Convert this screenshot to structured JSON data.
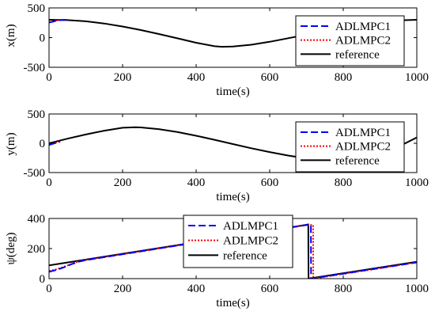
{
  "chart_data": [
    {
      "type": "line",
      "xlabel": "time(s)",
      "ylabel": "x(m)",
      "xlim": [
        0,
        1000
      ],
      "ylim": [
        -500,
        500
      ],
      "xticks": [
        "0",
        "200",
        "400",
        "600",
        "800",
        "1000"
      ],
      "yticks": [
        "500",
        "0",
        "-500"
      ],
      "legend_placement": "top-right",
      "series": [
        {
          "name": "ADLMPC1",
          "style": "dashed",
          "color": "#0000ff",
          "x": [
            0,
            10,
            20,
            30,
            40,
            50
          ],
          "y": [
            255,
            268,
            285,
            295,
            298,
            300
          ]
        },
        {
          "name": "ADLMPC2",
          "style": "dotted",
          "color": "#ff0000",
          "x": [
            0,
            10,
            20,
            30,
            40,
            50
          ],
          "y": [
            260,
            272,
            287,
            296,
            299,
            300
          ]
        },
        {
          "name": "reference",
          "style": "solid",
          "color": "#000000",
          "x": [
            0,
            50,
            100,
            150,
            200,
            250,
            300,
            350,
            400,
            450,
            470,
            500,
            550,
            600,
            650,
            700,
            750,
            800,
            850,
            900,
            950,
            1000
          ],
          "y": [
            300,
            295,
            275,
            237,
            187,
            126,
            59,
            -13,
            -86,
            -145,
            -155,
            -150,
            -120,
            -70,
            -10,
            50,
            110,
            175,
            230,
            270,
            290,
            300
          ]
        }
      ]
    },
    {
      "type": "line",
      "xlabel": "time(s)",
      "ylabel": "y(m)",
      "xlim": [
        0,
        1000
      ],
      "ylim": [
        -500,
        500
      ],
      "xticks": [
        "0",
        "200",
        "400",
        "600",
        "800",
        "1000"
      ],
      "yticks": [
        "500",
        "0",
        "-500"
      ],
      "legend_placement": "top-right",
      "series": [
        {
          "name": "ADLMPC1",
          "style": "dashed",
          "color": "#0000ff",
          "x": [
            0,
            10,
            20,
            30
          ],
          "y": [
            -30,
            -10,
            10,
            30
          ]
        },
        {
          "name": "ADLMPC2",
          "style": "dotted",
          "color": "#ff0000",
          "x": [
            0,
            10,
            20,
            30
          ],
          "y": [
            -20,
            -5,
            12,
            30
          ]
        },
        {
          "name": "reference",
          "style": "solid",
          "color": "#000000",
          "x": [
            0,
            50,
            100,
            150,
            200,
            235,
            250,
            300,
            350,
            400,
            450,
            500,
            550,
            600,
            650,
            700,
            720,
            750,
            800,
            850,
            900,
            950,
            1000
          ],
          "y": [
            0,
            78,
            150,
            215,
            265,
            275,
            270,
            240,
            190,
            128,
            59,
            -13,
            -85,
            -150,
            -210,
            -260,
            -275,
            -270,
            -240,
            -190,
            -128,
            -60,
            100
          ]
        }
      ]
    },
    {
      "type": "line",
      "xlabel": "time(s)",
      "ylabel": "ψ(deg)",
      "xlim": [
        0,
        1000
      ],
      "ylim": [
        0,
        400
      ],
      "xticks": [
        "0",
        "200",
        "400",
        "600",
        "800",
        "1000"
      ],
      "yticks": [
        "400",
        "200",
        "0"
      ],
      "legend_placement": "top-center",
      "series": [
        {
          "name": "ADLMPC1",
          "style": "dashed",
          "color": "#0000ff",
          "x": [
            0,
            20,
            40,
            60,
            80,
            100,
            700,
            712,
            712.5,
            1000
          ],
          "y": [
            45,
            58,
            75,
            95,
            112,
            123,
            357,
            357,
            0,
            108
          ]
        },
        {
          "name": "ADLMPC2",
          "style": "dotted",
          "color": "#ff0000",
          "x": [
            0,
            20,
            40,
            60,
            80,
            100,
            700,
            718,
            718.5,
            1000
          ],
          "y": [
            50,
            62,
            78,
            97,
            113,
            123,
            357,
            357,
            0,
            108
          ]
        },
        {
          "name": "reference",
          "style": "solid",
          "color": "#000000",
          "x": [
            0,
            705,
            705.5,
            1000
          ],
          "y": [
            88,
            360,
            0,
            112
          ]
        }
      ]
    }
  ]
}
